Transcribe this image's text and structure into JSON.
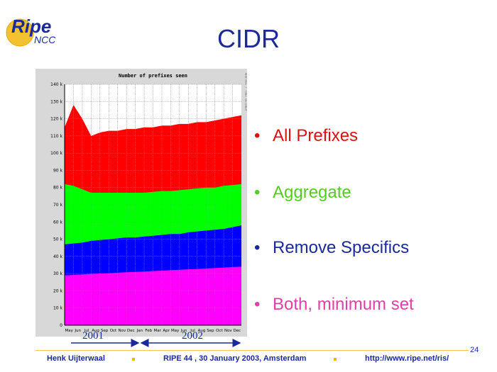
{
  "slide": {
    "logo": {
      "main": "Ripe",
      "sub": "NCC"
    },
    "title": "CIDR",
    "page_number": "24"
  },
  "bullets": [
    {
      "text": "All Prefixes",
      "color": "#e01010"
    },
    {
      "text": "Aggregate",
      "color": "#55cc22"
    },
    {
      "text": "Remove Specifics",
      "color": "#1a2a9a"
    },
    {
      "text": "Both, minimum set",
      "color": "#e040a8"
    }
  ],
  "bullet_marker": "•",
  "years": {
    "first": "2001",
    "second": "2002"
  },
  "footer": {
    "author": "Henk Uijterwaal",
    "event": "RIPE 44 ,  30 January 2003, Amsterdam",
    "url": "http://www.ripe.net/ris/"
  },
  "chart_data": {
    "type": "area",
    "title": "Number of prefixes seen",
    "side_text": "RRDTOOL / TOBI OETIKER",
    "y_ticks": [
      "0",
      "10 k",
      "20 k",
      "30 k",
      "40 k",
      "50 k",
      "60 k",
      "70 k",
      "80 k",
      "90 k",
      "100 k",
      "110 k",
      "120 k",
      "130 k",
      "140 k"
    ],
    "ylim": [
      0,
      140
    ],
    "y_unit": "k",
    "x_ticks": [
      "May",
      "Jun",
      "Jul",
      "Aug",
      "Sep",
      "Oct",
      "Nov",
      "Dec",
      "Jan",
      "Feb",
      "Mar",
      "Apr",
      "May",
      "Jun",
      "Jul",
      "Aug",
      "Sep",
      "Oct",
      "Nov",
      "Dec"
    ],
    "x": [
      0,
      1,
      2,
      3,
      4,
      5,
      6,
      7,
      8,
      9,
      10,
      11,
      12,
      13,
      14,
      15,
      16,
      17,
      18,
      19,
      20
    ],
    "series": [
      {
        "color": "#ff0000",
        "values": [
          115,
          128,
          120,
          110,
          112,
          113,
          113,
          114,
          114,
          115,
          115,
          116,
          116,
          117,
          117,
          118,
          118,
          119,
          120,
          121,
          122
        ]
      },
      {
        "color": "#00ff00",
        "values": [
          82,
          81,
          79,
          77,
          77,
          77,
          77,
          77,
          77,
          77,
          77.5,
          78,
          78,
          78.5,
          79,
          79.5,
          80,
          80,
          81,
          81.5,
          82
        ]
      },
      {
        "color": "#0000ff",
        "values": [
          47,
          47.5,
          48,
          49,
          49.5,
          50,
          50.5,
          51,
          51,
          51.5,
          52,
          52.5,
          53,
          53,
          54,
          54.5,
          55,
          55.5,
          56,
          57,
          58
        ]
      },
      {
        "color": "#ff00ff",
        "values": [
          29,
          29.2,
          29.5,
          29.8,
          30,
          30.2,
          30.5,
          30.8,
          31,
          31.2,
          31.5,
          31.7,
          32,
          32.2,
          32.5,
          32.7,
          33,
          33.2,
          33.5,
          33.8,
          34
        ]
      }
    ]
  }
}
